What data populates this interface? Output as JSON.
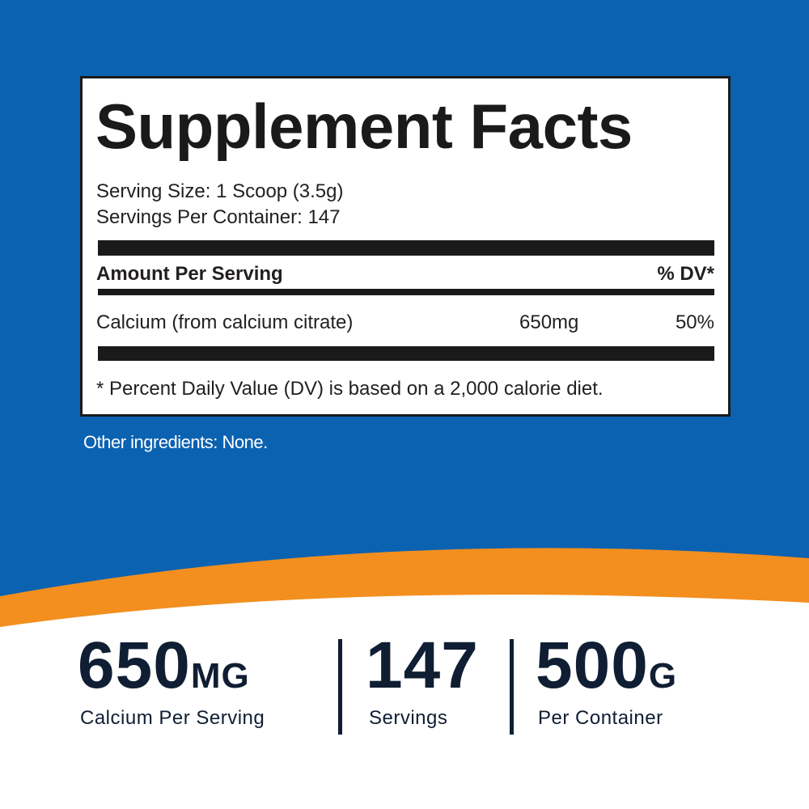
{
  "panel": {
    "title": "Supplement Facts",
    "serving_size": "Serving Size: 1 Scoop (3.5g)",
    "servings_per_container": "Servings Per Container: 147",
    "header": {
      "amount": "Amount Per Serving",
      "dv": "% DV*"
    },
    "rows": [
      {
        "name": "Calcium (from calcium citrate)",
        "amount": "650mg",
        "dv": "50%"
      }
    ],
    "footnote": "* Percent Daily Value (DV) is based on a 2,000 calorie diet."
  },
  "other_ingredients": "Other ingredients: None.",
  "stats": [
    {
      "value": "650",
      "unit": "MG",
      "label": "Calcium Per Serving"
    },
    {
      "value": "147",
      "label": "Servings"
    },
    {
      "value": "500",
      "unit": "G",
      "label": "Per Container"
    }
  ]
}
